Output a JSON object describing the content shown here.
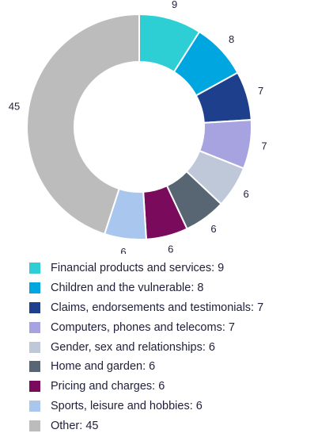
{
  "chart_data": {
    "type": "pie",
    "donut": true,
    "categories": [
      "Financial products and services",
      "Children and the vulnerable",
      "Claims, endorsements and testimonials",
      "Computers, phones and telecoms",
      "Gender, sex and relationships",
      "Home and garden",
      "Pricing and charges",
      "Sports, leisure and hobbies",
      "Other"
    ],
    "values": [
      9,
      8,
      7,
      7,
      6,
      6,
      6,
      6,
      45
    ],
    "colors": [
      "#2ecfd4",
      "#00a6e0",
      "#1e3f8c",
      "#a7a3e0",
      "#bfc8d9",
      "#586673",
      "#7a0a5c",
      "#a8c6ee",
      "#bcbcbc"
    ],
    "data_labels": [
      "9",
      "8",
      "7",
      "7",
      "6",
      "6",
      "6",
      "6",
      "45"
    ],
    "legend_labels": [
      "Financial products and services: 9",
      "Children and the vulnerable: 8",
      "Claims, endorsements and testimonials: 7",
      "Computers, phones and telecoms: 7",
      "Gender, sex and relationships: 6",
      "Home and garden: 6",
      "Pricing and charges: 6",
      "Sports, leisure and hobbies: 6",
      "Other: 45"
    ],
    "legend_position": "bottom"
  }
}
